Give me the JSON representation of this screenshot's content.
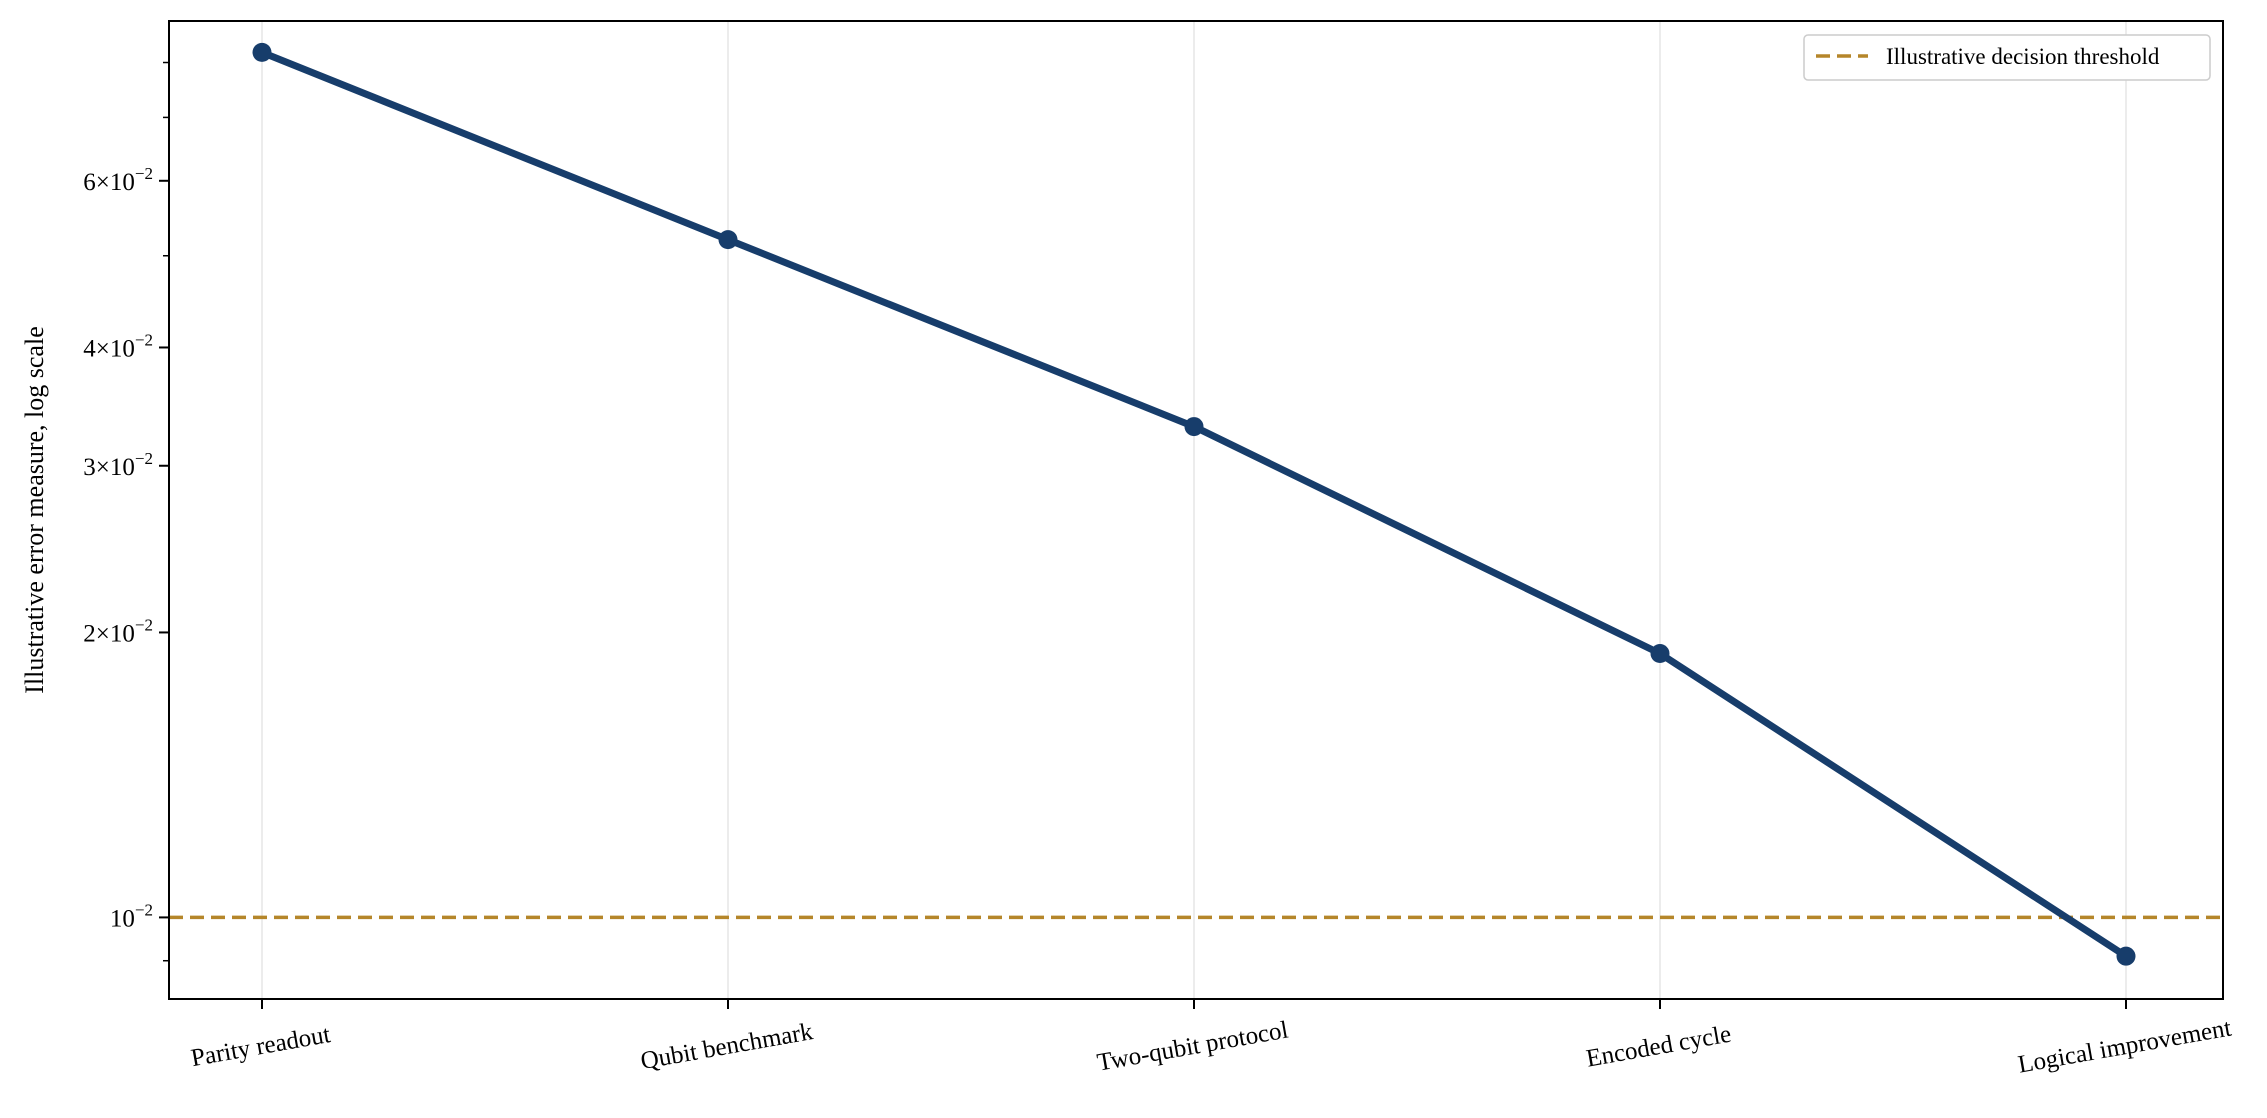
{
  "chart_data": {
    "type": "line",
    "title": "",
    "xlabel": "",
    "ylabel": "Illustrative error measure, log scale",
    "yscale": "log",
    "ylim": [
      0.0082,
      0.0885
    ],
    "categories": [
      "Parity readout",
      "Qubit benchmark",
      "Two-qubit protocol",
      "Encoded cycle",
      "Logical improvement"
    ],
    "series": [
      {
        "name": "",
        "values": [
          0.082,
          0.052,
          0.033,
          0.019,
          0.0091
        ],
        "color": "#173d6b"
      }
    ],
    "threshold": {
      "label": "Illustrative decision threshold",
      "value": 0.01,
      "color": "#b5862a"
    },
    "yticks": [
      {
        "value": 0.06,
        "mantissa": "6",
        "base": "10",
        "exp": "−2"
      },
      {
        "value": 0.04,
        "mantissa": "4",
        "base": "10",
        "exp": "−2"
      },
      {
        "value": 0.03,
        "mantissa": "3",
        "base": "10",
        "exp": "−2"
      },
      {
        "value": 0.02,
        "mantissa": "2",
        "base": "10",
        "exp": "−2"
      },
      {
        "value": 0.01,
        "mantissa": "",
        "base": "10",
        "exp": "−2"
      }
    ],
    "minor_yticks": [
      0.009,
      0.05,
      0.07,
      0.08
    ],
    "grid": "x-major",
    "legend_position": "top-right",
    "xtick_rotation": 10
  }
}
